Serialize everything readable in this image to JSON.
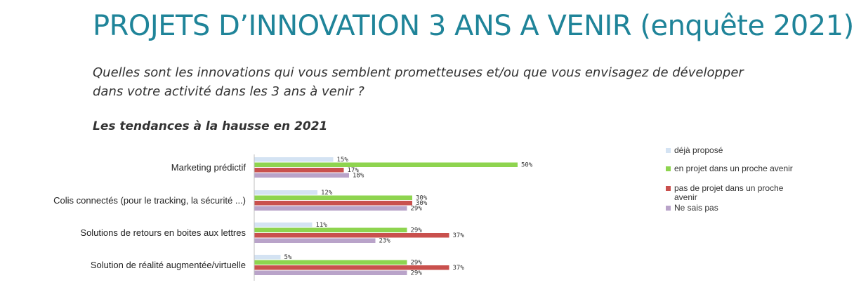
{
  "header": {
    "title": "PROJETS D’INNOVATION 3 ANS A VENIR (enquête 2021)",
    "question_line1": "Quelles  sont les innovations qui vous semblent prometteuses et/ou que vous envisagez de développer",
    "question_line2": "dans votre activité  dans les 3 ans à venir ?",
    "subtitle": "Les tendances à la hausse en 2021"
  },
  "chart_data": {
    "type": "bar",
    "orientation": "horizontal",
    "categories": [
      "Marketing prédictif",
      "Colis connectés (pour le tracking, la sécurité ...)",
      "Solutions de retours en boites aux lettres",
      "Solution de réalité augmentée/virtuelle"
    ],
    "series": [
      {
        "name": "déjà proposé",
        "values": [
          15,
          12,
          11,
          5
        ],
        "labels": [
          "15%",
          "12%",
          "11%",
          "5%"
        ],
        "color": "#d4e3f3"
      },
      {
        "name": "en projet dans un proche avenir",
        "values": [
          50,
          30,
          29,
          29
        ],
        "labels": [
          "50%",
          "30%",
          "29%",
          "29%"
        ],
        "color": "#8ed44f"
      },
      {
        "name": "pas de projet dans un proche avenir",
        "values": [
          17,
          30,
          37,
          37
        ],
        "labels": [
          "17%",
          "30%",
          "37%",
          "37%"
        ],
        "color": "#c9504d"
      },
      {
        "name": "Ne sais pas",
        "values": [
          18,
          29,
          23,
          29
        ],
        "labels": [
          "18%",
          "29%",
          "23%",
          "29%"
        ],
        "color": "#b9a3c9"
      }
    ],
    "xlim": [
      0,
      50
    ],
    "legend_position": "right",
    "grid": false
  }
}
